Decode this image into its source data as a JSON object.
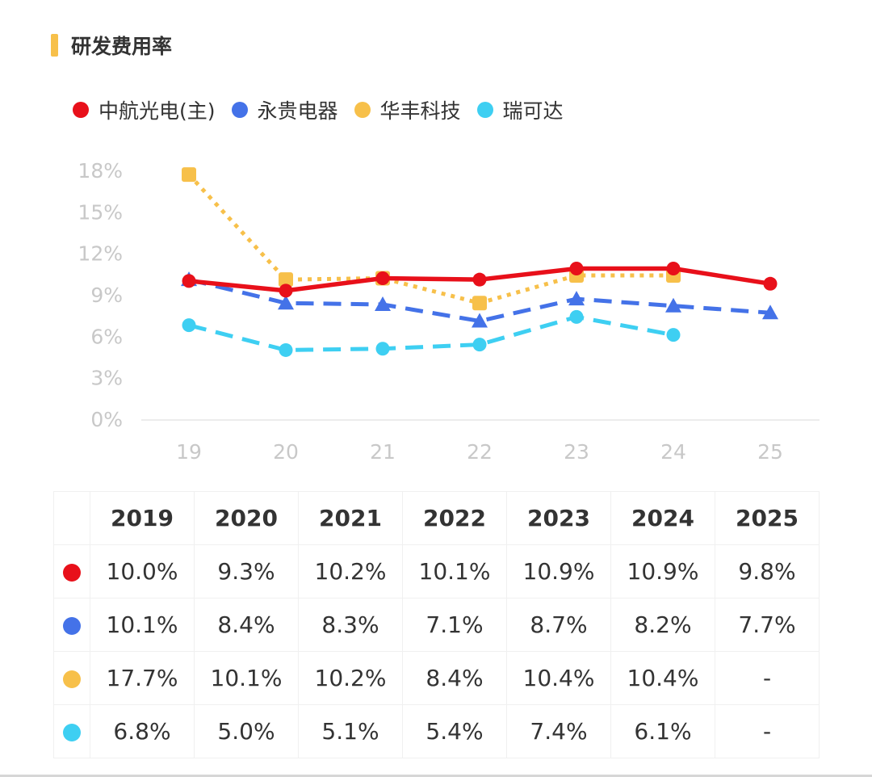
{
  "title": "研发费用率",
  "colors": {
    "accent": "#f7c04a"
  },
  "chart_data": {
    "type": "line",
    "title": "研发费用率",
    "xlabel": "",
    "ylabel": "",
    "x": [
      "19",
      "20",
      "21",
      "22",
      "23",
      "24",
      "25"
    ],
    "yticks": [
      "0%",
      "3%",
      "6%",
      "9%",
      "12%",
      "15%",
      "18%"
    ],
    "ylim": [
      0,
      18
    ],
    "grid": false,
    "legend_position": "top-left",
    "series": [
      {
        "name": "中航光电(主)",
        "color": "#e8101a",
        "style": "solid",
        "marker": "circle",
        "values": [
          10.0,
          9.3,
          10.2,
          10.1,
          10.9,
          10.9,
          9.8
        ]
      },
      {
        "name": "永贵电器",
        "color": "#4472e8",
        "style": "dashed",
        "marker": "triangle",
        "values": [
          10.1,
          8.4,
          8.3,
          7.1,
          8.7,
          8.2,
          7.7
        ]
      },
      {
        "name": "华丰科技",
        "color": "#f7c04a",
        "style": "dotted",
        "marker": "square",
        "values": [
          17.7,
          10.1,
          10.2,
          8.4,
          10.4,
          10.4,
          null
        ]
      },
      {
        "name": "瑞可达",
        "color": "#3ecff2",
        "style": "dashed",
        "marker": "circle",
        "values": [
          6.8,
          5.0,
          5.1,
          5.4,
          7.4,
          6.1,
          null
        ]
      }
    ]
  },
  "table": {
    "years": [
      "2019",
      "2020",
      "2021",
      "2022",
      "2023",
      "2024",
      "2025"
    ],
    "rows": [
      {
        "color": "#e8101a",
        "cells": [
          "10.0%",
          "9.3%",
          "10.2%",
          "10.1%",
          "10.9%",
          "10.9%",
          "9.8%"
        ]
      },
      {
        "color": "#4472e8",
        "cells": [
          "10.1%",
          "8.4%",
          "8.3%",
          "7.1%",
          "8.7%",
          "8.2%",
          "7.7%"
        ]
      },
      {
        "color": "#f7c04a",
        "cells": [
          "17.7%",
          "10.1%",
          "10.2%",
          "8.4%",
          "10.4%",
          "10.4%",
          "-"
        ]
      },
      {
        "color": "#3ecff2",
        "cells": [
          "6.8%",
          "5.0%",
          "5.1%",
          "5.4%",
          "7.4%",
          "6.1%",
          "-"
        ]
      }
    ]
  }
}
